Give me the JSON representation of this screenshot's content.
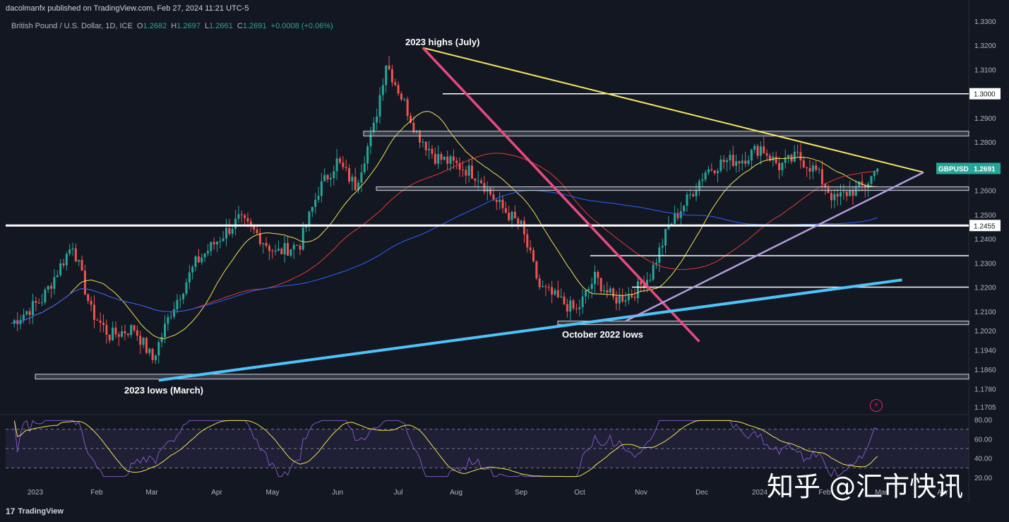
{
  "header": {
    "publisher": "dacolmanfx published on TradingView.com, Feb 27, 2024 11:21 UTC-5"
  },
  "symbol": {
    "name": "British Pound / U.S. Dollar, 1D, ICE",
    "o_label": "O",
    "o": "1.2682",
    "h_label": "H",
    "h": "1.2697",
    "l_label": "L",
    "l": "1.2661",
    "c_label": "C",
    "c": "1.2691",
    "change": "+0.0008 (+0.06%)"
  },
  "footer": {
    "brand": "TradingView"
  },
  "watermark": "知乎 @汇市快讯",
  "colors": {
    "background": "#131722",
    "up": "#26a69a",
    "down": "#ef5350",
    "ma50": "#f0e050",
    "ma100": "#e53935",
    "ma200": "#2962ff",
    "rsi": "#7e57c2",
    "rsi_ma": "#f0e050",
    "trend_yellow": "#f5e663",
    "trend_pink": "#e84a7f",
    "trend_cyan": "#4fc3f7",
    "trend_purple": "#b39ddb"
  },
  "chart_data": {
    "type": "candlestick",
    "symbol": "GBPUSD",
    "timeframe": "1D",
    "y_axis": {
      "ticks": [
        "1.3300",
        "1.3200",
        "1.3100",
        "1.3000",
        "1.2900",
        "1.2800",
        "1.2600",
        "1.2500",
        "1.2400",
        "1.2300",
        "1.2200",
        "1.2100",
        "1.2020",
        "1.1940",
        "1.1860",
        "1.1780",
        "1.1705"
      ],
      "range": [
        1.1705,
        1.33
      ]
    },
    "x_axis": {
      "ticks": [
        "2023",
        "Feb",
        "Mar",
        "Apr",
        "May",
        "Jun",
        "Jul",
        "Aug",
        "Sep",
        "Oct",
        "Nov",
        "Dec",
        "2024",
        "Feb",
        "Mar",
        "Apr"
      ]
    },
    "price_labels": [
      {
        "text": "1.3000",
        "value": 1.3
      },
      {
        "text": "1.2455",
        "value": 1.2455
      }
    ],
    "last_price": {
      "symbol": "GBPUSD",
      "value": "1.2691"
    },
    "annotations": [
      {
        "text": "2023 highs (July)"
      },
      {
        "text": "October 2022 lows"
      },
      {
        "text": "2023 lows (March)"
      }
    ],
    "horizontal_levels": [
      1.3,
      1.2455,
      1.233,
      1.22
    ],
    "zones": [
      {
        "low": 1.2825,
        "high": 1.2845
      },
      {
        "low": 1.26,
        "high": 1.2615
      },
      {
        "low": 1.2045,
        "high": 1.206
      },
      {
        "low": 1.182,
        "high": 1.184
      }
    ],
    "close_anchors": [
      [
        0,
        1.205
      ],
      [
        10,
        1.215
      ],
      [
        20,
        1.238
      ],
      [
        26,
        1.21
      ],
      [
        32,
        1.2
      ],
      [
        40,
        1.203
      ],
      [
        46,
        1.19
      ],
      [
        52,
        1.21
      ],
      [
        60,
        1.23
      ],
      [
        66,
        1.238
      ],
      [
        74,
        1.248
      ],
      [
        80,
        1.242
      ],
      [
        86,
        1.234
      ],
      [
        94,
        1.238
      ],
      [
        100,
        1.26
      ],
      [
        106,
        1.272
      ],
      [
        112,
        1.262
      ],
      [
        118,
        1.286
      ],
      [
        122,
        1.313
      ],
      [
        128,
        1.296
      ],
      [
        132,
        1.284
      ],
      [
        138,
        1.274
      ],
      [
        146,
        1.27
      ],
      [
        152,
        1.266
      ],
      [
        158,
        1.255
      ],
      [
        166,
        1.245
      ],
      [
        172,
        1.22
      ],
      [
        178,
        1.215
      ],
      [
        184,
        1.21
      ],
      [
        190,
        1.224
      ],
      [
        196,
        1.215
      ],
      [
        202,
        1.217
      ],
      [
        208,
        1.225
      ],
      [
        214,
        1.245
      ],
      [
        220,
        1.256
      ],
      [
        226,
        1.268
      ],
      [
        232,
        1.272
      ],
      [
        238,
        1.273
      ],
      [
        244,
        1.278
      ],
      [
        250,
        1.27
      ],
      [
        256,
        1.274
      ],
      [
        262,
        1.268
      ],
      [
        268,
        1.256
      ],
      [
        272,
        1.259
      ],
      [
        278,
        1.262
      ],
      [
        282,
        1.2691
      ]
    ],
    "rsi": {
      "ticks": [
        "80.00",
        "60.00",
        "40.00",
        "20.00"
      ],
      "range": [
        20,
        80
      ],
      "levels": [
        70,
        50,
        30
      ]
    }
  }
}
